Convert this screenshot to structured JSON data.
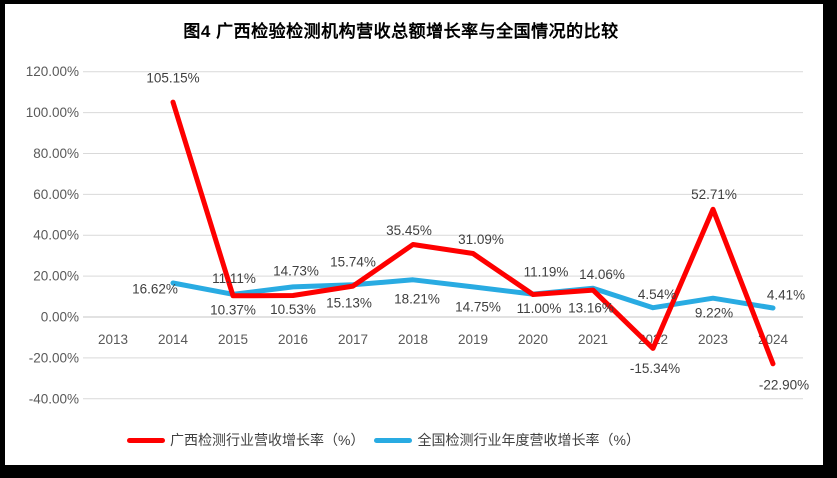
{
  "title": "图4 广西检验检测机构营收总额增长率与全国情况的比较",
  "legend": {
    "items": [
      {
        "id": "guangxi",
        "label": "广西检测行业营收增长率（%）",
        "color": "#fe0000"
      },
      {
        "id": "national",
        "label": "全国检测行业年度营收增长率（%）",
        "color": "#29abe2"
      }
    ]
  },
  "chart_data": {
    "type": "line",
    "title": "图4 广西检验检测机构营收总额增长率与全国情况的比较",
    "categories": [
      "2013",
      "2014",
      "2015",
      "2016",
      "2017",
      "2018",
      "2019",
      "2020",
      "2021",
      "2022",
      "2023",
      "2024"
    ],
    "series": [
      {
        "id": "guangxi",
        "name": "广西检测行业营收增长率（%）",
        "color": "#fe0000",
        "start_index": 1,
        "values": [
          105.15,
          10.37,
          10.53,
          15.13,
          35.45,
          31.09,
          11.0,
          13.16,
          -15.34,
          52.71,
          -22.9
        ],
        "point_labels": [
          "105.15%",
          "10.37%",
          "10.53%",
          "15.13%",
          "35.45%",
          "31.09%",
          "11.00%",
          "13.16%",
          "-15.34%",
          "52.71%",
          "-22.90%"
        ],
        "label_offsets": [
          [
            0,
            -24
          ],
          [
            0,
            14
          ],
          [
            0,
            14
          ],
          [
            -4,
            17
          ],
          [
            -4,
            -14
          ],
          [
            8,
            -14
          ],
          [
            6,
            14
          ],
          [
            -2,
            18
          ],
          [
            2,
            20
          ],
          [
            1,
            -15
          ],
          [
            11,
            21
          ]
        ]
      },
      {
        "id": "national",
        "name": "全国检测行业年度营收增长率（%）",
        "color": "#29abe2",
        "start_index": 1,
        "values": [
          16.62,
          11.11,
          14.73,
          15.74,
          18.21,
          14.75,
          11.19,
          14.06,
          4.54,
          9.22,
          4.41
        ],
        "point_labels": [
          "16.62%",
          "11.11%",
          "14.73%",
          "15.74%",
          "18.21%",
          "14.75%",
          "11.19%",
          "14.06%",
          "4.54%",
          "9.22%",
          "4.41%"
        ],
        "label_offsets": [
          [
            -18,
            6
          ],
          [
            1,
            -16
          ],
          [
            3,
            -16
          ],
          [
            0,
            -23
          ],
          [
            4,
            19
          ],
          [
            5,
            20
          ],
          [
            13,
            -22
          ],
          [
            9,
            -14
          ],
          [
            4,
            -13
          ],
          [
            1,
            15
          ],
          [
            13,
            -13
          ]
        ]
      }
    ],
    "y_ticks": [
      120,
      100,
      80,
      60,
      40,
      20,
      0,
      -20,
      -40
    ],
    "y_tick_labels": [
      "120.00%",
      "100.00%",
      "80.00%",
      "60.00%",
      "40.00%",
      "20.00%",
      "0.00%",
      "-20.00%",
      "-40.00%"
    ],
    "ylim": [
      -40,
      120
    ],
    "xlabel": "",
    "ylabel": "",
    "grid": true,
    "legend_position": "bottom",
    "axis_color": "#595959",
    "gridline_color": "#d9d9d9",
    "zero_line_color": "#c6c6c6",
    "label_color": "#3f3f3f",
    "line_width": 5
  }
}
